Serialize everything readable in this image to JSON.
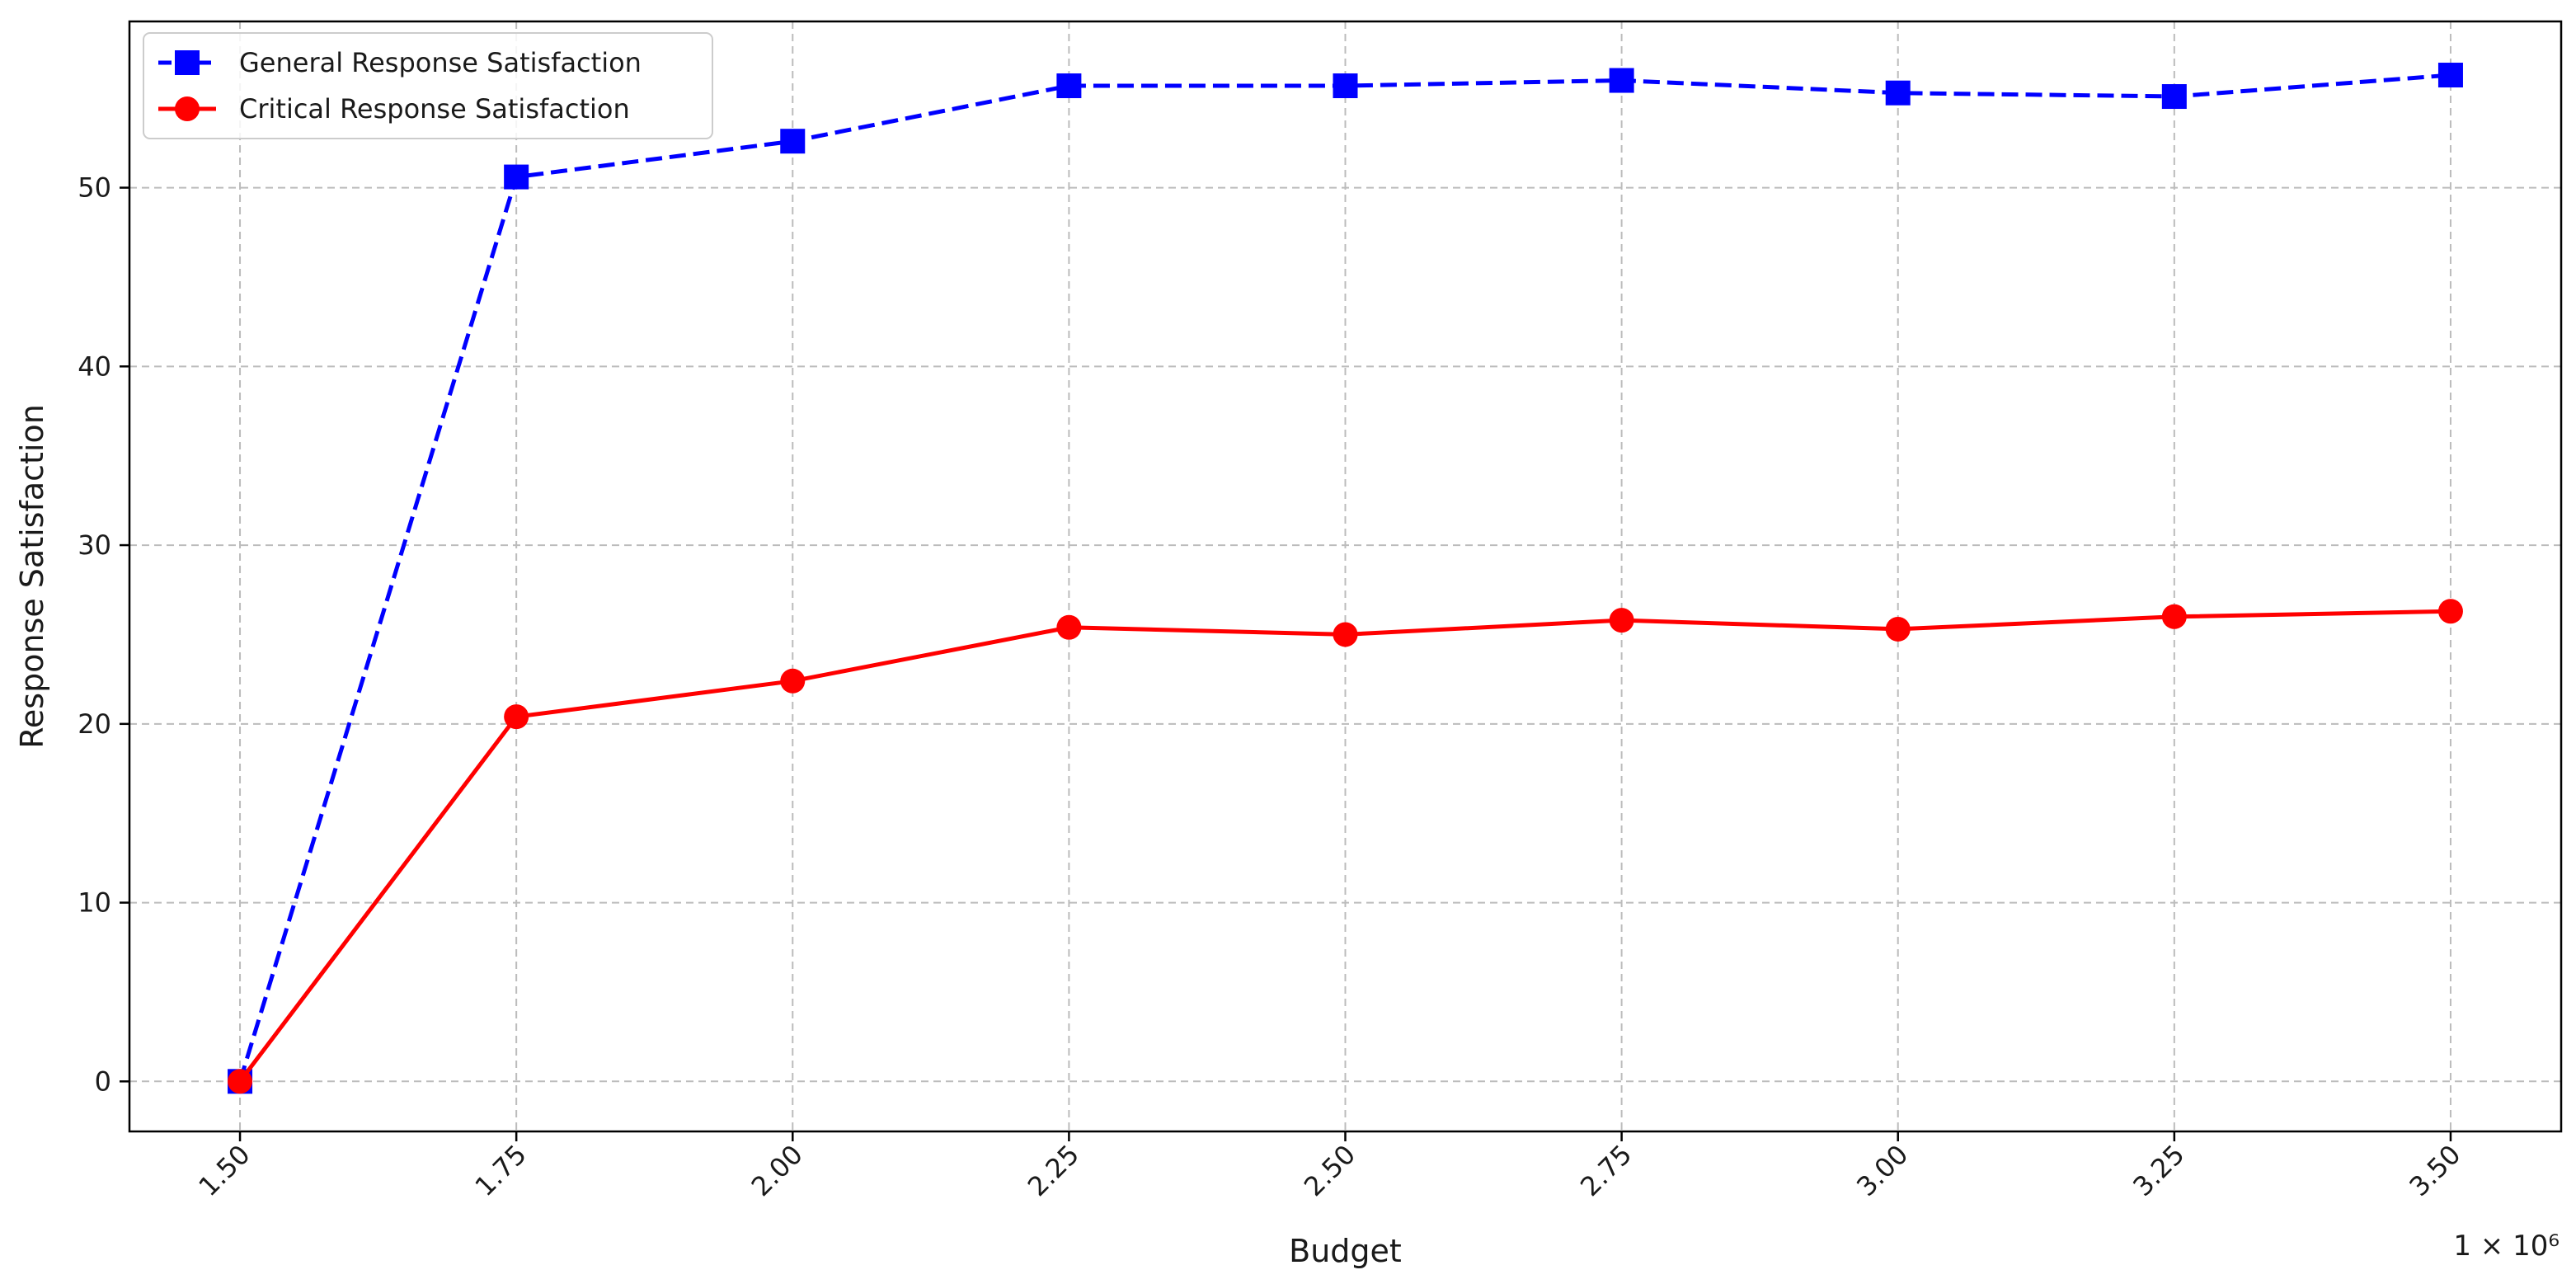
{
  "chart_data": {
    "type": "line",
    "title": "",
    "xlabel": "Budget",
    "ylabel": "Response Satisfaction",
    "x_multiplier_label": "1 × 10⁶",
    "x": [
      1.5,
      1.75,
      2.0,
      2.25,
      2.5,
      2.75,
      3.0,
      3.25,
      3.5
    ],
    "x_tick_labels": [
      "1.50",
      "1.75",
      "2.00",
      "2.25",
      "2.50",
      "2.75",
      "3.00",
      "3.25",
      "3.50"
    ],
    "y_ticks": [
      0,
      10,
      20,
      30,
      40,
      50
    ],
    "y_tick_labels": [
      "0",
      "10",
      "20",
      "30",
      "40",
      "50"
    ],
    "xlim": [
      1.4,
      3.6
    ],
    "ylim": [
      -2.8,
      59.3
    ],
    "grid": true,
    "legend_position": "top-left",
    "series": [
      {
        "name": "General Response Satisfaction",
        "color": "#0000ff",
        "line_style": "dashed",
        "marker": "square",
        "values": [
          0,
          50.6,
          52.6,
          55.7,
          55.7,
          56.0,
          55.3,
          55.1,
          56.3
        ]
      },
      {
        "name": "Critical Response Satisfaction",
        "color": "#ff0000",
        "line_style": "solid",
        "marker": "circle",
        "values": [
          0,
          20.4,
          22.4,
          25.4,
          25.0,
          25.8,
          25.3,
          26.0,
          26.3
        ]
      }
    ]
  }
}
